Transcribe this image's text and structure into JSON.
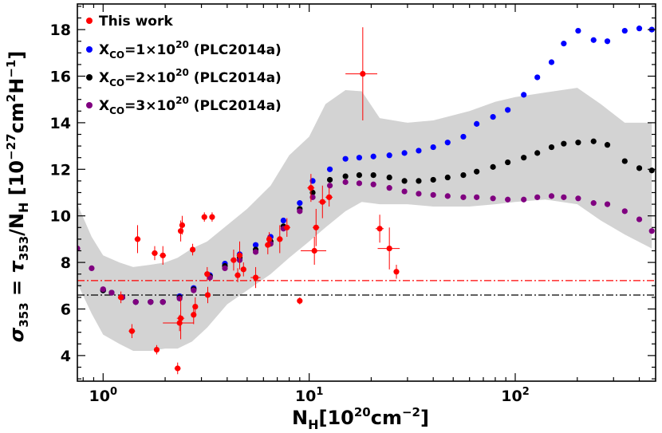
{
  "chart_data": {
    "type": "scatter",
    "xscale": "log",
    "xlim": [
      0.75,
      480
    ],
    "ylim": [
      2.9,
      19.1
    ],
    "xticks": [
      1,
      10,
      100
    ],
    "xtick_labels": [
      "10^0",
      "10^1",
      "10^2"
    ],
    "yticks": [
      4,
      6,
      8,
      10,
      12,
      14,
      16,
      18
    ],
    "ytick_labels": [
      "4",
      "6",
      "8",
      "10",
      "12",
      "14",
      "16",
      "18"
    ],
    "xlabel": "N_H[10^20cm^-2]",
    "ylabel": "σ_353 = τ_353/N_H [10^-27cm^2H^-1]",
    "legend_position": "top-left",
    "series": [
      {
        "name": "This work",
        "label_main": "This work",
        "color": "#ff0000",
        "errorbars": true,
        "points": [
          {
            "x": 1.22,
            "y": 6.5,
            "yerr": 0.25,
            "xerr": 0.04
          },
          {
            "x": 1.38,
            "y": 5.05,
            "yerr": 0.3,
            "xerr": 0.05
          },
          {
            "x": 1.47,
            "y": 9.0,
            "yerr": 0.6,
            "xerr": 0.05
          },
          {
            "x": 1.78,
            "y": 8.4,
            "yerr": 0.3,
            "xerr": 0.06
          },
          {
            "x": 1.82,
            "y": 4.25,
            "yerr": 0.2,
            "xerr": 0.05
          },
          {
            "x": 1.95,
            "y": 8.3,
            "yerr": 0.4,
            "xerr": 0.07
          },
          {
            "x": 2.3,
            "y": 3.45,
            "yerr": 0.25,
            "xerr": 0.08
          },
          {
            "x": 2.35,
            "y": 5.4,
            "yerr": 0.35,
            "xerr": 0.4
          },
          {
            "x": 2.38,
            "y": 5.6,
            "yerr": 0.9,
            "xerr": 0.1
          },
          {
            "x": 2.38,
            "y": 9.35,
            "yerr": 0.45,
            "xerr": 0.07
          },
          {
            "x": 2.42,
            "y": 9.6,
            "yerr": 0.4,
            "xerr": 0.07
          },
          {
            "x": 2.72,
            "y": 8.55,
            "yerr": 0.25,
            "xerr": 0.08
          },
          {
            "x": 2.75,
            "y": 5.75,
            "yerr": 0.4,
            "xerr": 0.08
          },
          {
            "x": 2.8,
            "y": 6.1,
            "yerr": 0.4,
            "xerr": 0.08
          },
          {
            "x": 3.1,
            "y": 9.95,
            "yerr": 0.2,
            "xerr": 0.09
          },
          {
            "x": 3.2,
            "y": 7.5,
            "yerr": 0.3,
            "xerr": 0.1
          },
          {
            "x": 3.22,
            "y": 6.6,
            "yerr": 0.35,
            "xerr": 0.1
          },
          {
            "x": 3.38,
            "y": 9.95,
            "yerr": 0.2,
            "xerr": 0.1
          },
          {
            "x": 4.3,
            "y": 8.1,
            "yerr": 0.45,
            "xerr": 0.15
          },
          {
            "x": 4.5,
            "y": 7.45,
            "yerr": 0.3,
            "xerr": 0.15
          },
          {
            "x": 4.6,
            "y": 8.3,
            "yerr": 0.6,
            "xerr": 0.15
          },
          {
            "x": 4.8,
            "y": 7.7,
            "yerr": 0.3,
            "xerr": 0.15
          },
          {
            "x": 5.5,
            "y": 7.35,
            "yerr": 0.45,
            "xerr": 0.3
          },
          {
            "x": 6.3,
            "y": 8.75,
            "yerr": 0.4,
            "xerr": 0.2
          },
          {
            "x": 6.4,
            "y": 9.0,
            "yerr": 0.3,
            "xerr": 0.2
          },
          {
            "x": 7.2,
            "y": 9.0,
            "yerr": 0.6,
            "xerr": 0.25
          },
          {
            "x": 7.8,
            "y": 9.5,
            "yerr": 0.4,
            "xerr": 0.3
          },
          {
            "x": 9.0,
            "y": 6.35,
            "yerr": 0.15,
            "xerr": 0.2
          },
          {
            "x": 10.2,
            "y": 11.2,
            "yerr": 0.6,
            "xerr": 0.4
          },
          {
            "x": 10.6,
            "y": 8.5,
            "yerr": 0.6,
            "xerr": 1.5
          },
          {
            "x": 10.8,
            "y": 9.5,
            "yerr": 0.8,
            "xerr": 0.4
          },
          {
            "x": 11.6,
            "y": 10.6,
            "yerr": 0.7,
            "xerr": 0.5
          },
          {
            "x": 12.5,
            "y": 10.8,
            "yerr": 0.4,
            "xerr": 0.5
          },
          {
            "x": 18.2,
            "y": 16.1,
            "yerr": 2.0,
            "xerr": 3.2
          },
          {
            "x": 22.0,
            "y": 9.45,
            "yerr": 0.6,
            "xerr": 1.0
          },
          {
            "x": 24.5,
            "y": 8.6,
            "yerr": 0.9,
            "xerr": 3.0
          },
          {
            "x": 26.5,
            "y": 7.6,
            "yerr": 0.3,
            "xerr": 0.8
          }
        ]
      },
      {
        "name": "X_CO=1×10^20 (PLC2014a)",
        "label_main": "X",
        "label_sub": "CO",
        "label_rest": "=1×10",
        "label_sup": "20",
        "label_tail": " (PLC2014a)",
        "color": "#0000ff",
        "x": [
          1.0,
          1.1,
          1.24,
          1.44,
          1.7,
          1.95,
          2.35,
          2.75,
          3.3,
          3.9,
          4.6,
          5.5,
          6.5,
          7.5,
          9,
          10.4,
          12.6,
          15,
          17.5,
          20.5,
          24.5,
          29,
          34,
          40,
          47,
          56,
          65,
          78,
          92,
          110,
          128,
          150,
          172,
          202,
          240,
          280,
          340,
          400,
          460
        ],
        "values": [
          6.8,
          6.7,
          6.5,
          6.3,
          6.3,
          6.3,
          6.55,
          6.9,
          7.45,
          7.95,
          8.35,
          8.75,
          9.1,
          9.8,
          10.55,
          11.5,
          12.0,
          12.45,
          12.5,
          12.55,
          12.6,
          12.7,
          12.8,
          12.95,
          13.15,
          13.4,
          13.95,
          14.25,
          14.55,
          15.2,
          15.95,
          16.6,
          17.4,
          17.95,
          17.55,
          17.5,
          17.95,
          18.05,
          18.0
        ]
      },
      {
        "name": "X_CO=2×10^20 (PLC2014a)",
        "label_main": "X",
        "label_sub": "CO",
        "label_rest": "=2×10",
        "label_sup": "20",
        "label_tail": " (PLC2014a)",
        "color": "#000000",
        "x": [
          1.0,
          1.1,
          1.24,
          1.44,
          1.7,
          1.95,
          2.35,
          2.75,
          3.3,
          3.9,
          4.6,
          5.5,
          6.5,
          7.5,
          9,
          10.4,
          12.6,
          15,
          17.5,
          20.5,
          24.5,
          29,
          34,
          40,
          47,
          56,
          65,
          78,
          92,
          110,
          128,
          150,
          172,
          202,
          240,
          280,
          340,
          400,
          460
        ],
        "values": [
          6.8,
          6.7,
          6.5,
          6.3,
          6.3,
          6.3,
          6.5,
          6.85,
          7.4,
          7.85,
          8.2,
          8.55,
          8.9,
          9.55,
          10.3,
          11.0,
          11.55,
          11.7,
          11.75,
          11.75,
          11.65,
          11.5,
          11.5,
          11.55,
          11.65,
          11.75,
          11.9,
          12.1,
          12.3,
          12.5,
          12.7,
          12.95,
          13.1,
          13.15,
          13.2,
          13.05,
          12.35,
          12.05,
          11.95
        ]
      },
      {
        "name": "X_CO=3×10^20 (PLC2014a)",
        "label_main": "X",
        "label_sub": "CO",
        "label_rest": "=3×10",
        "label_sup": "20",
        "label_tail": " (PLC2014a)",
        "color": "#800080",
        "x": [
          0.75,
          0.88,
          1.0,
          1.1,
          1.24,
          1.44,
          1.7,
          1.95,
          2.35,
          2.75,
          3.3,
          3.9,
          4.6,
          5.5,
          6.5,
          7.5,
          9,
          10.4,
          12.6,
          15,
          17.5,
          20.5,
          24.5,
          29,
          34,
          40,
          47,
          56,
          65,
          78,
          92,
          110,
          128,
          150,
          172,
          202,
          240,
          280,
          340,
          400,
          460
        ],
        "values": [
          8.6,
          7.75,
          6.85,
          6.7,
          6.5,
          6.3,
          6.3,
          6.3,
          6.45,
          6.8,
          7.35,
          7.75,
          8.1,
          8.45,
          8.8,
          9.45,
          10.2,
          10.8,
          11.3,
          11.45,
          11.4,
          11.35,
          11.2,
          11.05,
          10.95,
          10.9,
          10.85,
          10.8,
          10.8,
          10.75,
          10.7,
          10.7,
          10.8,
          10.85,
          10.8,
          10.75,
          10.55,
          10.5,
          10.2,
          9.85,
          9.35
        ]
      }
    ],
    "band": {
      "color": "#d3d3d3",
      "x": [
        0.75,
        0.88,
        1.0,
        1.2,
        1.4,
        1.7,
        2.0,
        2.3,
        2.7,
        3.2,
        4.0,
        5.0,
        6.5,
        8.0,
        10.0,
        12.0,
        15.0,
        18.0,
        22.0,
        30.0,
        40.0,
        60.0,
        80.0,
        100.0,
        140.0,
        200.0,
        260.0,
        340.0,
        460.0
      ],
      "upper": [
        10.5,
        9.1,
        8.3,
        8.0,
        7.8,
        7.9,
        8.0,
        8.2,
        8.6,
        8.9,
        9.6,
        10.3,
        11.3,
        12.6,
        13.4,
        14.8,
        15.4,
        15.35,
        14.2,
        14.0,
        14.1,
        14.5,
        14.9,
        15.1,
        15.3,
        15.5,
        14.8,
        14.0,
        14.0
      ],
      "lower": [
        7.1,
        5.8,
        4.9,
        4.5,
        4.2,
        4.2,
        4.3,
        4.3,
        4.6,
        5.2,
        6.2,
        6.8,
        7.5,
        8.2,
        8.9,
        9.5,
        10.2,
        10.6,
        10.5,
        10.5,
        10.4,
        10.4,
        10.5,
        10.6,
        10.7,
        10.5,
        9.8,
        9.2,
        8.6
      ]
    },
    "hlines": [
      {
        "y": 7.22,
        "color": "#ff0000",
        "style": "dashdot"
      },
      {
        "y": 6.6,
        "color": "#000000",
        "style": "dashdot"
      }
    ]
  }
}
